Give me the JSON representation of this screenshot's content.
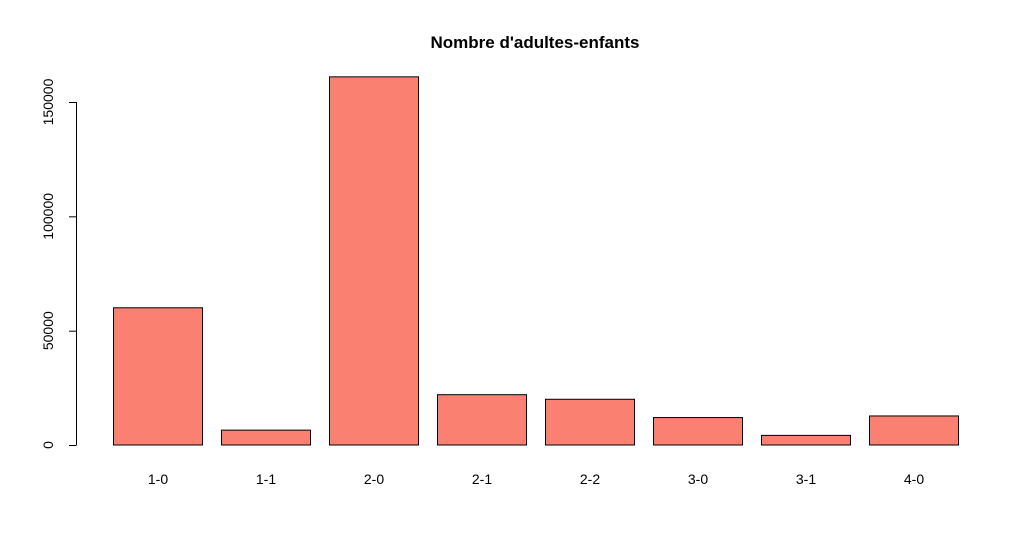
{
  "chart_data": {
    "type": "bar",
    "title": "Nombre d'adultes-enfants",
    "xlabel": "",
    "ylabel": "",
    "categories": [
      "1-0",
      "1-1",
      "2-0",
      "2-1",
      "2-2",
      "3-0",
      "3-1",
      "4-0"
    ],
    "values": [
      60000,
      6500,
      161000,
      22000,
      20000,
      12000,
      4200,
      12700
    ],
    "ylim": [
      0,
      165000
    ],
    "yticks": [
      0,
      50000,
      100000,
      150000
    ],
    "ytick_labels": [
      "0",
      "50000",
      "100000",
      "150000"
    ],
    "bar_color": "#FA8072",
    "grid": false,
    "legend": "none"
  }
}
